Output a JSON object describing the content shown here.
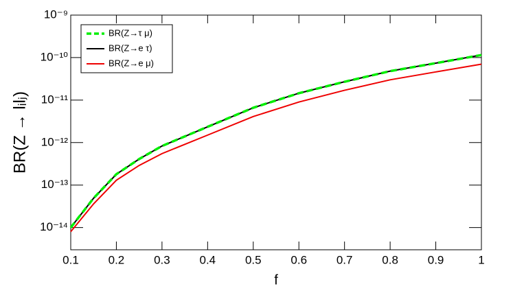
{
  "chart_data": {
    "type": "line",
    "x_label": "f",
    "y_label": "BR(Z → lᵢlⱼ)",
    "x": [
      0.1,
      0.15,
      0.2,
      0.25,
      0.3,
      0.4,
      0.5,
      0.6,
      0.7,
      0.8,
      0.9,
      1.0
    ],
    "series": [
      {
        "name": "BR(Z→τ μ)",
        "color": "#00ee00",
        "dash": true,
        "values": [
          1e-14,
          4.9e-14,
          1.8e-13,
          4.1e-13,
          8.3e-13,
          2.35e-12,
          6.6e-12,
          1.45e-11,
          2.7e-11,
          4.8e-11,
          7.4e-11,
          1.15e-10
        ]
      },
      {
        "name": "BR(Z→e τ)",
        "color": "#000000",
        "dash": false,
        "values": [
          1e-14,
          4.9e-14,
          1.8e-13,
          4.1e-13,
          8.3e-13,
          2.35e-12,
          6.6e-12,
          1.45e-11,
          2.7e-11,
          4.8e-11,
          7.4e-11,
          1.15e-10
        ]
      },
      {
        "name": "BR(Z→e μ)",
        "color": "#ee0000",
        "dash": false,
        "values": [
          8e-15,
          3.6e-14,
          1.3e-13,
          2.9e-13,
          5.5e-13,
          1.5e-12,
          4.1e-12,
          9e-12,
          1.7e-11,
          3e-11,
          4.6e-11,
          7e-11
        ]
      }
    ],
    "xlim": [
      0.1,
      1
    ],
    "xticks": [
      0.1,
      0.2,
      0.3,
      0.4,
      0.5,
      0.6,
      0.7,
      0.8,
      0.9,
      1
    ],
    "ylim": [
      3e-15,
      1e-09
    ],
    "ylog": true,
    "yticks": [
      {
        "value": 1e-14,
        "label": "10⁻¹⁴"
      },
      {
        "value": 1e-13,
        "label": "10⁻¹³"
      },
      {
        "value": 1e-12,
        "label": "10⁻¹²"
      },
      {
        "value": 1e-11,
        "label": "10⁻¹¹"
      },
      {
        "value": 1e-10,
        "label": "10⁻¹⁰"
      },
      {
        "value": 1e-09,
        "label": "10⁻⁹"
      }
    ],
    "legend": "top-left"
  }
}
